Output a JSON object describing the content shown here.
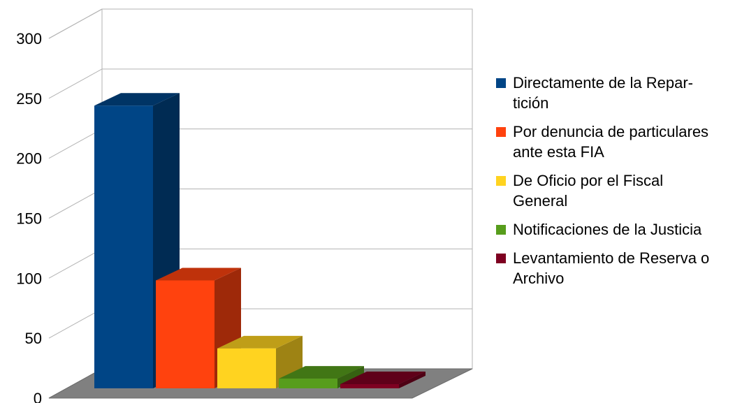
{
  "chart_data": {
    "type": "bar",
    "title": "",
    "xlabel": "",
    "ylabel": "",
    "ylim": [
      0,
      300
    ],
    "yticks": [
      0,
      50,
      100,
      150,
      200,
      250,
      300
    ],
    "categories": [
      "Directamente de la Repar-tición",
      "Por denuncia de particulares ante esta FIA",
      "De Oficio por el Fiscal General",
      "Notificaciones de la Justicia",
      "Levantamiento de Reserva o Archivo"
    ],
    "values": [
      262,
      100,
      37,
      9,
      2
    ],
    "colors": [
      "#004586",
      "#ff420e",
      "#ffd320",
      "#579d1c",
      "#7e0021"
    ],
    "grid": true,
    "legend_position": "right",
    "style": "3d"
  },
  "legend": {
    "items": [
      {
        "label_line1": "Directamente de la Repar-",
        "label_line2": "tición",
        "color": "#004586"
      },
      {
        "label_line1": "Por denuncia de particulares",
        "label_line2": "ante esta FIA",
        "color": "#ff420e"
      },
      {
        "label_line1": "De Oficio por el Fiscal",
        "label_line2": "General",
        "color": "#ffd320"
      },
      {
        "label_line1": "Notificaciones de la Justicia",
        "label_line2": "",
        "color": "#579d1c"
      },
      {
        "label_line1": "Levantamiento de Reserva o",
        "label_line2": "Archivo",
        "color": "#7e0021"
      }
    ]
  }
}
